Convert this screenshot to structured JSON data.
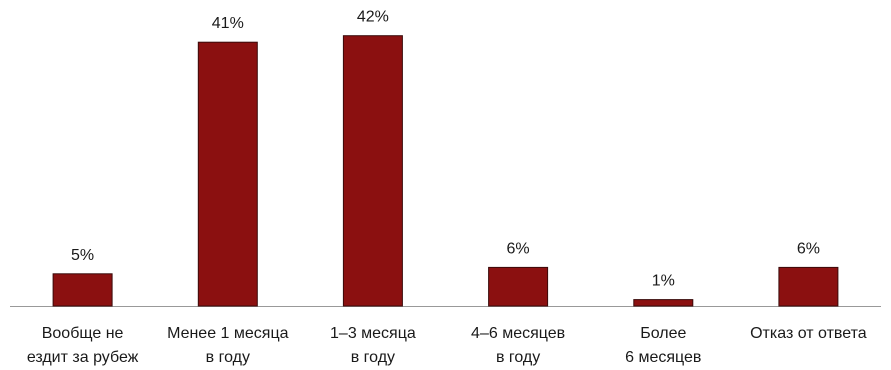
{
  "chart_data": {
    "type": "bar",
    "categories": [
      [
        "Вообще не",
        "ездит за рубеж"
      ],
      [
        "Менее 1 месяца",
        "в году"
      ],
      [
        "1–3 месяца",
        "в году"
      ],
      [
        "4–6 месяцев",
        "в году"
      ],
      [
        "Более",
        "6 месяцев"
      ],
      [
        "Отказ от ответа"
      ]
    ],
    "values": [
      5,
      41,
      42,
      6,
      1,
      6
    ],
    "value_labels": [
      "5%",
      "41%",
      "42%",
      "6%",
      "1%",
      "6%"
    ],
    "unit": "%",
    "ylim": [
      0,
      46
    ],
    "grid": false,
    "legend": "none",
    "bar_color": "#8b1010",
    "bar_edge_color": "#3a0a0a",
    "axis_color": "#999999"
  }
}
